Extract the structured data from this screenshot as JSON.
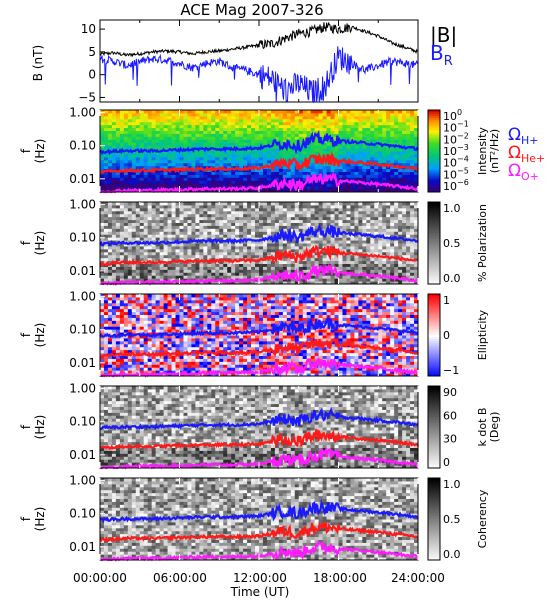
{
  "title": "ACE Mag 2007-326",
  "xlabel": "Time (UT)",
  "xticks": [
    "00:00:00",
    "06:00:00",
    "12:00:00",
    "18:00:00",
    "24:00:00"
  ],
  "legend_top": {
    "b_mag": "|B|",
    "b_r_main": "B",
    "b_r_sub": "R",
    "b_mag_color": "#000000",
    "b_r_color": "#1a1aff"
  },
  "legend_gyro": {
    "omega": "Ω",
    "h_sub": "H+",
    "he_sub": "He+",
    "o_sub": "O+",
    "h_color": "#1a1aff",
    "he_color": "#ff1a1a",
    "o_color": "#ff1aff"
  },
  "freq_ticks": [
    "1.00",
    "0.10",
    "0.01"
  ],
  "panel_ylabel_main": "f",
  "panel_ylabel_unit": "(Hz)",
  "panels": [
    {
      "id": "intensity",
      "colorbar": "rainbow",
      "cb_label_1": "Intensity",
      "cb_label_2": "(nT²/Hz)",
      "cb_ticks": [
        {
          "base": "10",
          "exp": "0"
        },
        {
          "base": "10",
          "exp": "−1"
        },
        {
          "base": "10",
          "exp": "−2"
        },
        {
          "base": "10",
          "exp": "−3"
        },
        {
          "base": "10",
          "exp": "−4"
        },
        {
          "base": "10",
          "exp": "−5"
        },
        {
          "base": "10",
          "exp": "−6"
        }
      ]
    },
    {
      "id": "polarization",
      "colorbar": "gray",
      "cb_label_1": "% Polarization",
      "cb_label_2": "",
      "cb_ticks": [
        {
          "base": "1.0",
          "exp": ""
        },
        {
          "base": "0.5",
          "exp": ""
        },
        {
          "base": "0.0",
          "exp": ""
        }
      ]
    },
    {
      "id": "ellipticity",
      "colorbar": "bwr",
      "cb_label_1": "Ellipticity",
      "cb_label_2": "",
      "cb_ticks": [
        {
          "base": "1",
          "exp": ""
        },
        {
          "base": "0",
          "exp": ""
        },
        {
          "base": "−1",
          "exp": ""
        }
      ]
    },
    {
      "id": "kdotb",
      "colorbar": "gray",
      "cb_label_1": "k dot B",
      "cb_label_2": "(Deg)",
      "cb_ticks": [
        {
          "base": "90",
          "exp": ""
        },
        {
          "base": "60",
          "exp": ""
        },
        {
          "base": "30",
          "exp": ""
        },
        {
          "base": "0",
          "exp": ""
        }
      ]
    },
    {
      "id": "coherency",
      "colorbar": "gray",
      "cb_label_1": "Coherency",
      "cb_label_2": "",
      "cb_ticks": [
        {
          "base": "1.0",
          "exp": ""
        },
        {
          "base": "0.5",
          "exp": ""
        },
        {
          "base": "0.0",
          "exp": ""
        }
      ]
    }
  ],
  "chart_data": {
    "type": "line",
    "title": "ACE Mag 2007-326",
    "xlabel": "Time (UT)",
    "xlim": [
      "00:00:00",
      "24:00:00"
    ],
    "top_panel": {
      "ylabel": "B (nT)",
      "ylim": [
        -6,
        12
      ],
      "yticks": [
        "10",
        "5",
        "0",
        "−5"
      ],
      "series": [
        {
          "name": "|B|",
          "color": "#000000",
          "x_hours": [
            0,
            1,
            2,
            3,
            4,
            5,
            6,
            7,
            8,
            9,
            10,
            11,
            12,
            13,
            14,
            15,
            16,
            17,
            18,
            19,
            20,
            21,
            22,
            23,
            24
          ],
          "values": [
            4.5,
            4.8,
            4.3,
            4.6,
            5.0,
            5.2,
            5.0,
            4.6,
            5.0,
            5.2,
            5.6,
            6.0,
            6.5,
            6.8,
            8.0,
            9.0,
            9.5,
            10.5,
            10.0,
            10.5,
            9.5,
            8.5,
            7.0,
            6.0,
            5.0
          ]
        },
        {
          "name": "B_R",
          "color": "#1a1aff",
          "x_hours": [
            0,
            1,
            2,
            3,
            4,
            5,
            6,
            7,
            8,
            9,
            10,
            11,
            12,
            13,
            14,
            15,
            16,
            17,
            18,
            19,
            20,
            21,
            22,
            23,
            24
          ],
          "values": [
            3.5,
            3.0,
            2.0,
            2.8,
            3.5,
            3.2,
            2.5,
            1.5,
            2.5,
            3.0,
            1.5,
            1.0,
            0.0,
            -1.0,
            -3.5,
            -2.0,
            -4.0,
            -2.5,
            4.0,
            2.5,
            1.0,
            2.0,
            3.0,
            2.5,
            2.0
          ]
        }
      ]
    },
    "frequency_axis": {
      "ylabel": "f (Hz)",
      "scale": "log",
      "ylim": [
        0.004,
        1.2
      ],
      "yticks": [
        1.0,
        0.1,
        0.01
      ]
    },
    "gyrofrequency_lines": [
      {
        "name": "Ω_H+",
        "color": "#1a1aff",
        "x_hours": [
          0,
          2,
          4,
          6,
          8,
          10,
          12,
          14,
          15,
          16,
          17,
          18,
          20,
          22,
          24
        ],
        "values": [
          0.065,
          0.07,
          0.07,
          0.075,
          0.08,
          0.08,
          0.085,
          0.12,
          0.1,
          0.15,
          0.16,
          0.14,
          0.12,
          0.1,
          0.08
        ]
      },
      {
        "name": "Ω_He+",
        "color": "#ff1a1a",
        "x_hours": [
          0,
          2,
          4,
          6,
          8,
          10,
          12,
          14,
          15,
          16,
          17,
          18,
          20,
          22,
          24
        ],
        "values": [
          0.016,
          0.018,
          0.018,
          0.019,
          0.02,
          0.02,
          0.021,
          0.03,
          0.025,
          0.037,
          0.04,
          0.035,
          0.03,
          0.025,
          0.02
        ]
      },
      {
        "name": "Ω_O+",
        "color": "#ff1aff",
        "x_hours": [
          0,
          2,
          4,
          6,
          8,
          10,
          12,
          14,
          15,
          16,
          17,
          18,
          20,
          22,
          24
        ],
        "values": [
          0.004,
          0.0045,
          0.0045,
          0.0047,
          0.005,
          0.005,
          0.0053,
          0.0075,
          0.0062,
          0.0093,
          0.01,
          0.0088,
          0.0075,
          0.0062,
          0.005
        ]
      }
    ]
  }
}
